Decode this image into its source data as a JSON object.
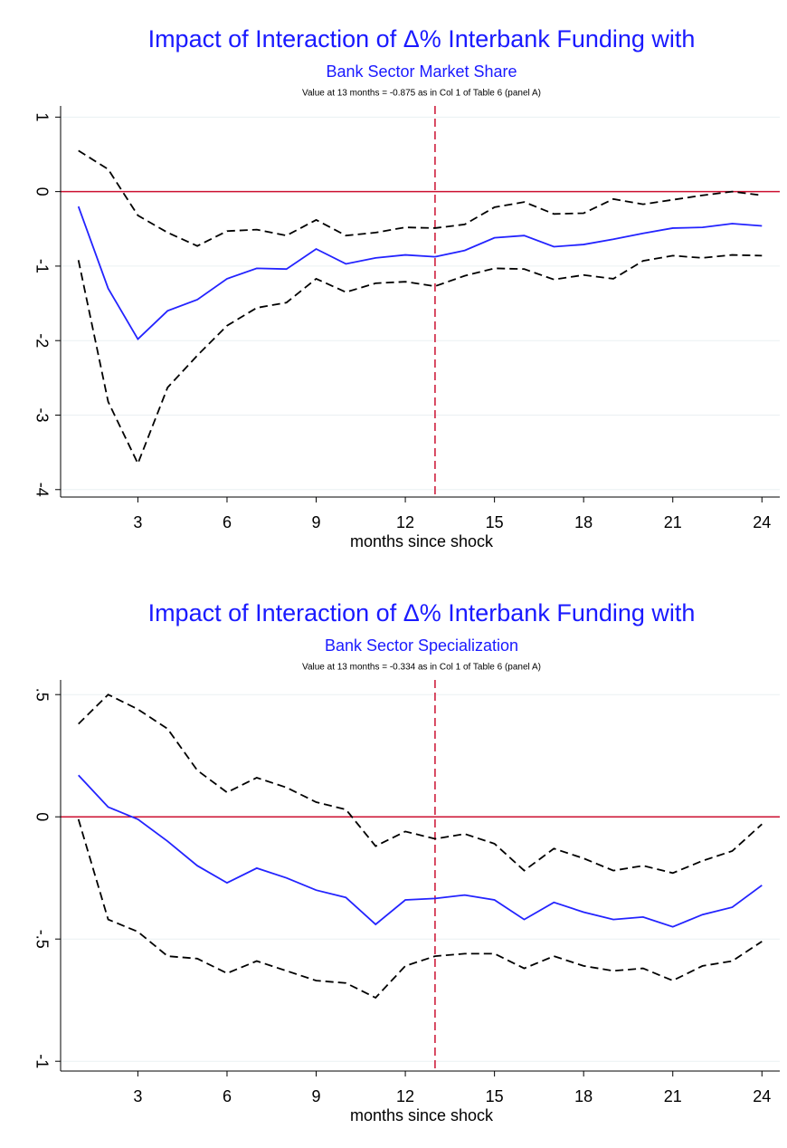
{
  "chart_data": [
    {
      "type": "line",
      "title": "Impact of Interaction of Δ% Interbank Funding with",
      "subtitle": "Bank Sector Market Share",
      "note": "Value at 13 months = -0.875 as in Col 1 of Table 6 (panel A)",
      "xlabel": "months since shock",
      "x": [
        1,
        2,
        3,
        4,
        5,
        6,
        7,
        8,
        9,
        10,
        11,
        12,
        13,
        14,
        15,
        16,
        17,
        18,
        19,
        20,
        21,
        22,
        23,
        24
      ],
      "series": [
        {
          "color": "#2323ff",
          "dash": false,
          "values": [
            -0.2,
            -1.3,
            -1.98,
            -1.6,
            -1.45,
            -1.17,
            -1.03,
            -1.04,
            -0.77,
            -0.97,
            -0.89,
            -0.85,
            -0.875,
            -0.79,
            -0.62,
            -0.59,
            -0.74,
            -0.71,
            -0.64,
            -0.56,
            -0.49,
            -0.48,
            -0.43,
            -0.46
          ]
        },
        {
          "color": "#000000",
          "dash": true,
          "values": [
            0.55,
            0.3,
            -0.32,
            -0.55,
            -0.73,
            -0.53,
            -0.51,
            -0.59,
            -0.38,
            -0.59,
            -0.55,
            -0.48,
            -0.49,
            -0.44,
            -0.21,
            -0.14,
            -0.3,
            -0.29,
            -0.1,
            -0.17,
            -0.11,
            -0.05,
            0.0,
            -0.05
          ]
        },
        {
          "color": "#000000",
          "dash": true,
          "values": [
            -0.92,
            -2.82,
            -3.65,
            -2.63,
            -2.2,
            -1.8,
            -1.56,
            -1.49,
            -1.17,
            -1.35,
            -1.23,
            -1.21,
            -1.27,
            -1.13,
            -1.03,
            -1.04,
            -1.18,
            -1.12,
            -1.17,
            -0.93,
            -0.86,
            -0.89,
            -0.85,
            -0.86
          ]
        }
      ],
      "xlim": [
        0.4,
        24.6
      ],
      "xticks": [
        3,
        6,
        9,
        12,
        15,
        18,
        21,
        24
      ],
      "ylim": [
        -4.1,
        1.15
      ],
      "yticks": [
        1,
        0,
        -1,
        -2,
        -3,
        -4
      ],
      "hline": 0,
      "vline": 13,
      "grid": true
    },
    {
      "type": "line",
      "title": "Impact of Interaction of Δ% Interbank Funding with",
      "subtitle": "Bank Sector Specialization",
      "note": "Value at 13 months = -0.334 as in Col 1 of Table 6 (panel A)",
      "xlabel": "months since shock",
      "x": [
        1,
        2,
        3,
        4,
        5,
        6,
        7,
        8,
        9,
        10,
        11,
        12,
        13,
        14,
        15,
        16,
        17,
        18,
        19,
        20,
        21,
        22,
        23,
        24
      ],
      "series": [
        {
          "color": "#2323ff",
          "dash": false,
          "values": [
            0.17,
            0.04,
            -0.01,
            -0.1,
            -0.2,
            -0.27,
            -0.21,
            -0.25,
            -0.3,
            -0.33,
            -0.44,
            -0.34,
            -0.334,
            -0.32,
            -0.34,
            -0.42,
            -0.35,
            -0.39,
            -0.42,
            -0.41,
            -0.45,
            -0.4,
            -0.37,
            -0.28
          ]
        },
        {
          "color": "#000000",
          "dash": true,
          "values": [
            0.38,
            0.5,
            0.44,
            0.36,
            0.19,
            0.1,
            0.16,
            0.12,
            0.06,
            0.03,
            -0.12,
            -0.06,
            -0.09,
            -0.07,
            -0.11,
            -0.22,
            -0.13,
            -0.17,
            -0.22,
            -0.2,
            -0.23,
            -0.18,
            -0.14,
            -0.03
          ]
        },
        {
          "color": "#000000",
          "dash": true,
          "values": [
            -0.01,
            -0.42,
            -0.47,
            -0.57,
            -0.58,
            -0.64,
            -0.59,
            -0.63,
            -0.67,
            -0.68,
            -0.74,
            -0.61,
            -0.57,
            -0.56,
            -0.56,
            -0.62,
            -0.57,
            -0.61,
            -0.63,
            -0.62,
            -0.67,
            -0.61,
            -0.59,
            -0.51
          ]
        }
      ],
      "xlim": [
        0.4,
        24.6
      ],
      "xticks": [
        3,
        6,
        9,
        12,
        15,
        18,
        21,
        24
      ],
      "ylim": [
        -1.04,
        0.56
      ],
      "yticks": [
        {
          "value": 0.5,
          "label": ".5"
        },
        0,
        {
          "value": -0.5,
          "label": "-.5"
        },
        -1
      ],
      "hline": 0,
      "vline": 13,
      "grid": true
    }
  ]
}
